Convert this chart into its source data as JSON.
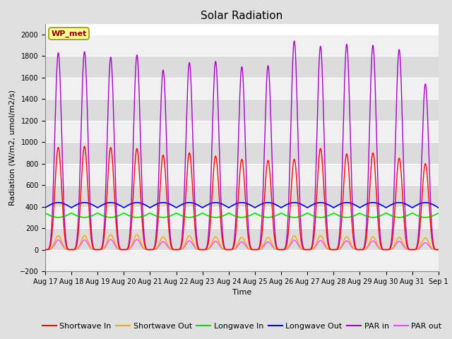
{
  "title": "Solar Radiation",
  "ylabel": "Radiation (W/m2, umol/m2/s)",
  "xlabel": "Time",
  "ylim": [
    -200,
    2100
  ],
  "yticks": [
    -200,
    0,
    200,
    400,
    600,
    800,
    1000,
    1200,
    1400,
    1600,
    1800,
    2000
  ],
  "xtick_labels": [
    "Aug 17",
    "Aug 18",
    "Aug 19",
    "Aug 20",
    "Aug 21",
    "Aug 22",
    "Aug 23",
    "Aug 24",
    "Aug 25",
    "Aug 26",
    "Aug 27",
    "Aug 28",
    "Aug 29",
    "Aug 30",
    "Aug 31",
    "Sep 1"
  ],
  "station_label": "WP_met",
  "station_label_color": "#8B0000",
  "station_box_facecolor": "#FFFF99",
  "station_box_edgecolor": "#999900",
  "background_color": "#E0E0E0",
  "plot_bg_color": "#FFFFFF",
  "band_color_light": "#F0F0F0",
  "band_color_dark": "#DCDCDC",
  "grid_color": "#FFFFFF",
  "colors": {
    "shortwave_in": "#FF0000",
    "shortwave_out": "#FFA500",
    "longwave_in": "#00DD00",
    "longwave_out": "#0000DD",
    "par_in": "#AA00CC",
    "par_out": "#FF44FF"
  },
  "legend_labels": [
    "Shortwave In",
    "Shortwave Out",
    "Longwave In",
    "Longwave Out",
    "PAR in",
    "PAR out"
  ],
  "n_days": 15,
  "pts_per_day": 288,
  "shortwave_in_peaks": [
    950,
    960,
    950,
    940,
    880,
    900,
    870,
    840,
    830,
    840,
    940,
    890,
    900,
    850,
    800
  ],
  "par_in_peaks": [
    1830,
    1840,
    1790,
    1810,
    1670,
    1740,
    1750,
    1700,
    1710,
    1940,
    1890,
    1910,
    1900,
    1860,
    1540
  ],
  "shortwave_out_peaks": [
    130,
    130,
    140,
    140,
    120,
    130,
    120,
    115,
    115,
    130,
    130,
    120,
    120,
    115,
    110
  ],
  "par_out_peaks": [
    90,
    90,
    95,
    95,
    75,
    82,
    78,
    72,
    72,
    88,
    85,
    82,
    82,
    78,
    65
  ],
  "longwave_in_base": 340,
  "longwave_out_base": 390,
  "longwave_dip_amplitude": 40,
  "peak_sharpness": 6,
  "title_fontsize": 11,
  "label_fontsize": 8,
  "tick_fontsize": 7,
  "legend_fontsize": 8
}
